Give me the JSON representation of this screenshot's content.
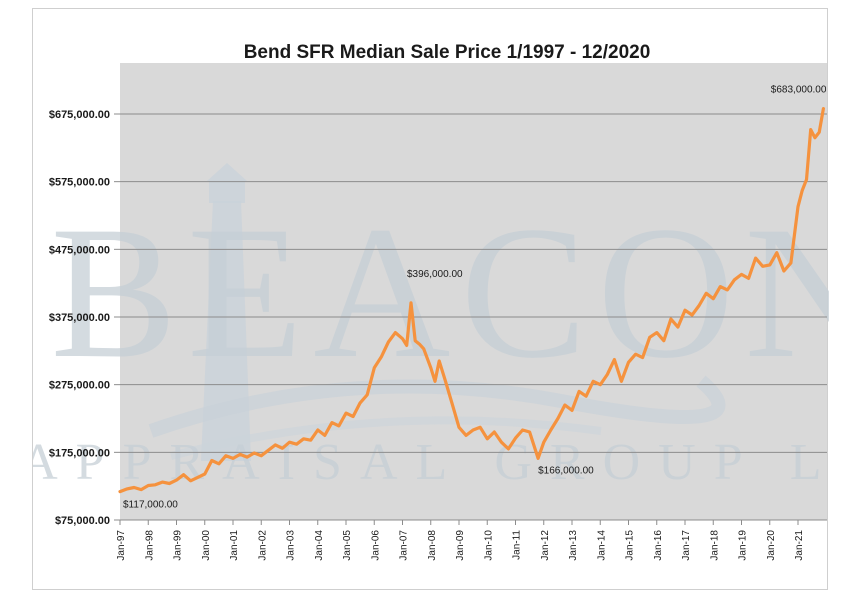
{
  "chart_data": {
    "type": "line",
    "title": "Bend SFR Median Sale Price 1/1997 - 12/2020",
    "xlabel": "",
    "ylabel": "",
    "ylim": [
      75000,
      725000
    ],
    "yticks": [
      75000,
      175000,
      275000,
      375000,
      475000,
      575000,
      675000
    ],
    "ytick_labels": [
      "$75,000.00",
      "$175,000.00",
      "$275,000.00",
      "$375,000.00",
      "$475,000.00",
      "$575,000.00",
      "$675,000.00"
    ],
    "xticks": [
      1997,
      1998,
      1999,
      2000,
      2001,
      2002,
      2003,
      2004,
      2005,
      2006,
      2007,
      2008,
      2009,
      2010,
      2011,
      2012,
      2013,
      2014,
      2015,
      2016,
      2017,
      2018,
      2019,
      2020,
      2021
    ],
    "xtick_labels": [
      "Jan-97",
      "Jan-98",
      "Jan-99",
      "Jan-00",
      "Jan-01",
      "Jan-02",
      "Jan-03",
      "Jan-04",
      "Jan-05",
      "Jan-06",
      "Jan-07",
      "Jan-08",
      "Jan-09",
      "Jan-10",
      "Jan-11",
      "Jan-12",
      "Jan-13",
      "Jan-14",
      "Jan-15",
      "Jan-16",
      "Jan-17",
      "Jan-18",
      "Jan-19",
      "Jan-20",
      "Jan-21"
    ],
    "xlim": [
      1997,
      2022
    ],
    "grid": true,
    "legend": "none",
    "series": [
      {
        "name": "Median Sale Price",
        "color": "#f5923e",
        "x": [
          1997.0,
          1997.25,
          1997.5,
          1997.75,
          1998.0,
          1998.25,
          1998.5,
          1998.75,
          1999.0,
          1999.25,
          1999.5,
          1999.75,
          2000.0,
          2000.25,
          2000.5,
          2000.75,
          2001.0,
          2001.25,
          2001.5,
          2001.75,
          2002.0,
          2002.25,
          2002.5,
          2002.75,
          2003.0,
          2003.25,
          2003.5,
          2003.75,
          2004.0,
          2004.25,
          2004.5,
          2004.75,
          2005.0,
          2005.25,
          2005.5,
          2005.75,
          2006.0,
          2006.25,
          2006.5,
          2006.75,
          2007.0,
          2007.15,
          2007.3,
          2007.45,
          2007.6,
          2007.75,
          2008.0,
          2008.15,
          2008.3,
          2008.5,
          2008.75,
          2009.0,
          2009.25,
          2009.5,
          2009.75,
          2010.0,
          2010.25,
          2010.5,
          2010.75,
          2011.0,
          2011.25,
          2011.5,
          2011.8,
          2012.0,
          2012.25,
          2012.5,
          2012.75,
          2013.0,
          2013.25,
          2013.5,
          2013.75,
          2014.0,
          2014.25,
          2014.5,
          2014.75,
          2015.0,
          2015.25,
          2015.5,
          2015.75,
          2016.0,
          2016.25,
          2016.5,
          2016.75,
          2017.0,
          2017.25,
          2017.5,
          2017.75,
          2018.0,
          2018.25,
          2018.5,
          2018.75,
          2019.0,
          2019.25,
          2019.5,
          2019.75,
          2020.0,
          2020.25,
          2020.5,
          2020.75,
          2021.0,
          2021.15,
          2021.3,
          2021.45,
          2021.6,
          2021.75,
          2021.9
        ],
        "values": [
          117000,
          121000,
          123000,
          120000,
          126000,
          127000,
          131000,
          129000,
          134000,
          142000,
          133000,
          138000,
          143000,
          163000,
          158000,
          170000,
          166000,
          172000,
          168000,
          174000,
          170000,
          178000,
          186000,
          181000,
          190000,
          187000,
          195000,
          193000,
          208000,
          200000,
          219000,
          214000,
          233000,
          228000,
          248000,
          260000,
          300000,
          316000,
          338000,
          352000,
          343000,
          333000,
          396000,
          340000,
          335000,
          328000,
          300000,
          280000,
          310000,
          283000,
          248000,
          212000,
          200000,
          208000,
          212000,
          195000,
          205000,
          190000,
          180000,
          196000,
          208000,
          205000,
          166000,
          190000,
          208000,
          225000,
          245000,
          237000,
          265000,
          258000,
          280000,
          275000,
          290000,
          312000,
          280000,
          308000,
          320000,
          315000,
          345000,
          352000,
          340000,
          372000,
          360000,
          385000,
          378000,
          392000,
          410000,
          402000,
          420000,
          415000,
          430000,
          438000,
          432000,
          462000,
          450000,
          452000,
          470000,
          443000,
          455000,
          538000,
          562000,
          578000,
          652000,
          640000,
          648000,
          683000
        ]
      }
    ],
    "annotations": [
      {
        "text": "$117,000.00",
        "x": 1997.0,
        "y": 117000
      },
      {
        "text": "$396,000.00",
        "x": 2007.3,
        "y": 396000
      },
      {
        "text": "$166,000.00",
        "x": 2011.8,
        "y": 166000
      },
      {
        "text": "$683,000.00",
        "x": 2021.9,
        "y": 683000
      }
    ],
    "watermark": {
      "main": "BEACON",
      "sub": "APPRAISAL GROUP LLC"
    }
  }
}
